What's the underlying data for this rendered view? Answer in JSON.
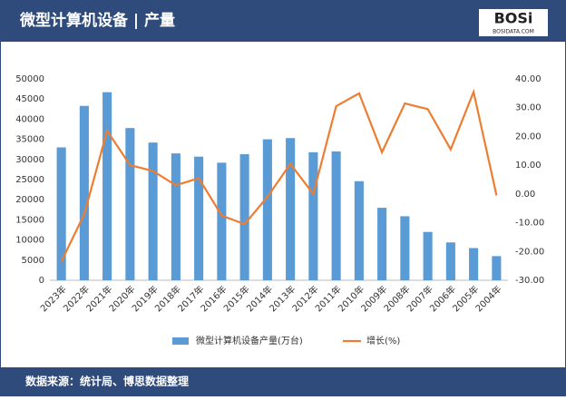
{
  "header": {
    "logo": "BOSi",
    "logo_sub": "BOSIDATA.COM"
  },
  "chart_data": {
    "type": "bar_line",
    "title": "微型计算机设备 | 产量",
    "categories": [
      "2023年",
      "2022年",
      "2021年",
      "2020年",
      "2019年",
      "2018年",
      "2017年",
      "2016年",
      "2015年",
      "2014年",
      "2013年",
      "2012年",
      "2011年",
      "2010年",
      "2009年",
      "2008年",
      "2007年",
      "2006年",
      "2005年",
      "2004年"
    ],
    "series": [
      {
        "name": "微型计算机设备产量(万台)",
        "type": "bar",
        "color": "#5b9bd5",
        "axis": "y",
        "values": [
          33000,
          43300,
          46700,
          37800,
          34200,
          31500,
          30700,
          29200,
          31300,
          35000,
          35300,
          31800,
          32000,
          24600,
          18000,
          15900,
          12000,
          9400,
          8000,
          6000
        ]
      },
      {
        "name": "增长(%)",
        "type": "line",
        "color": "#ed7d31",
        "axis": "y2",
        "values": [
          -23.5,
          -7,
          22,
          10,
          8,
          3,
          5.5,
          -7.5,
          -10.5,
          -1,
          10.5,
          0,
          30.5,
          35,
          14.5,
          31.5,
          29.5,
          15.5,
          35.5,
          -0.5
        ]
      }
    ],
    "ylim": [
      0,
      50000
    ],
    "yticks": [
      0,
      5000,
      10000,
      15000,
      20000,
      25000,
      30000,
      35000,
      40000,
      45000,
      50000
    ],
    "y2lim": [
      -30,
      40
    ],
    "y2ticks": [
      {
        "value": -30,
        "label": "-30.00"
      },
      {
        "value": -20,
        "label": "-20.00"
      },
      {
        "value": -10,
        "label": "-10.00"
      },
      {
        "value": 0,
        "label": "0.00"
      },
      {
        "value": 10,
        "label": "10.00"
      },
      {
        "value": 20,
        "label": "20.00"
      },
      {
        "value": 30,
        "label": "30.00"
      },
      {
        "value": 40,
        "label": "40.00"
      }
    ],
    "legend": "bottom",
    "grid": false
  },
  "footer": {
    "source": "数据来源：统计局、博思数据整理"
  }
}
